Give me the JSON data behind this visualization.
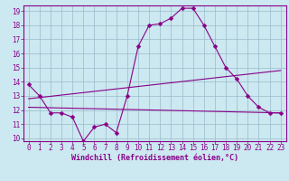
{
  "x": [
    0,
    1,
    2,
    3,
    4,
    5,
    6,
    7,
    8,
    9,
    10,
    11,
    12,
    13,
    14,
    15,
    16,
    17,
    18,
    19,
    20,
    21,
    22,
    23
  ],
  "line1": [
    13.8,
    13.0,
    11.8,
    11.8,
    11.5,
    9.8,
    10.8,
    11.0,
    10.4,
    13.0,
    16.5,
    18.0,
    18.1,
    18.5,
    19.2,
    19.2,
    18.0,
    16.5,
    15.0,
    14.2,
    13.0,
    12.2,
    11.8,
    11.8
  ],
  "line2_x": [
    0,
    23
  ],
  "line2_y": [
    12.8,
    14.8
  ],
  "line3_x": [
    0,
    23
  ],
  "line3_y": [
    12.2,
    11.8
  ],
  "color": "#880088",
  "bg_color": "#cce8f0",
  "grid_color": "#99bbcc",
  "xlim": [
    -0.5,
    23.5
  ],
  "ylim": [
    9.8,
    19.4
  ],
  "yticks": [
    10,
    11,
    12,
    13,
    14,
    15,
    16,
    17,
    18,
    19
  ],
  "xticks": [
    0,
    1,
    2,
    3,
    4,
    5,
    6,
    7,
    8,
    9,
    10,
    11,
    12,
    13,
    14,
    15,
    16,
    17,
    18,
    19,
    20,
    21,
    22,
    23
  ],
  "xlabel": "Windchill (Refroidissement éolien,°C)",
  "linewidth": 0.8,
  "markersize": 2.5,
  "tick_fontsize": 5.5,
  "xlabel_fontsize": 6.0
}
